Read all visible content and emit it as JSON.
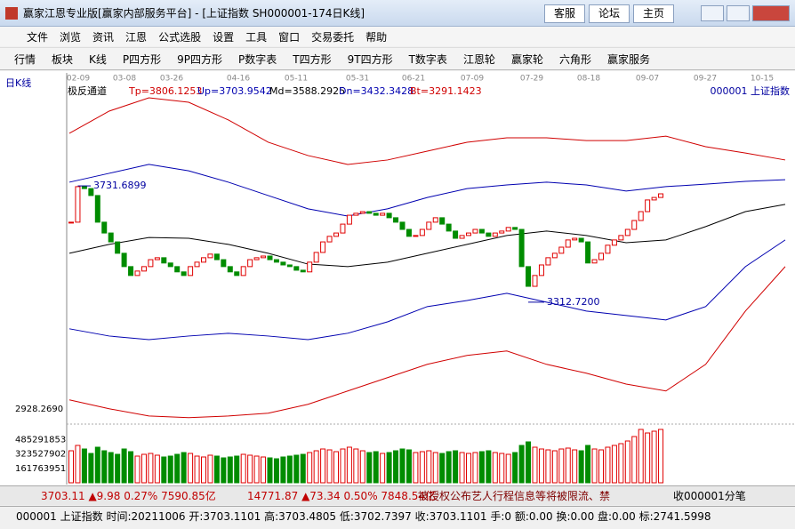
{
  "window": {
    "title": "赢家江恩专业版[赢家内部服务平台] - [上证指数  SH000001-174日K线]",
    "buttons": [
      "客服",
      "论坛",
      "主页"
    ]
  },
  "menu": [
    "文件",
    "浏览",
    "资讯",
    "江恩",
    "公式选股",
    "设置",
    "工具",
    "窗口",
    "交易委托",
    "帮助"
  ],
  "toolbar": [
    "行情",
    "板块",
    "K线",
    "P四方形",
    "9P四方形",
    "P数字表",
    "T四方形",
    "9T四方形",
    "T数字表",
    "江恩轮",
    "赢家轮",
    "六角形",
    "赢家服务"
  ],
  "chart_data": {
    "type": "candlestick",
    "period_label": "日K线",
    "indicator": "极反通道",
    "indicator_params": [
      "Tp=3806.1253",
      "Up=3703.9542",
      "Md=3588.2925",
      "Dn=3432.3428",
      "Bt=3291.1423"
    ],
    "symbol": "000001 上证指数",
    "dates": [
      "02-09",
      "03-08",
      "03-26",
      "04-16",
      "05-11",
      "05-31",
      "06-21",
      "07-09",
      "07-29",
      "08-18",
      "09-07",
      "09-27",
      "10-15"
    ],
    "closes": [
      3601,
      3729,
      3722,
      3697,
      3601,
      3562,
      3530,
      3489,
      3441,
      3409,
      3425,
      3441,
      3466,
      3473,
      3454,
      3441,
      3422,
      3409,
      3441,
      3457,
      3473,
      3486,
      3466,
      3441,
      3422,
      3409,
      3441,
      3466,
      3473,
      3479,
      3466,
      3457,
      3447,
      3441,
      3428,
      3422,
      3457,
      3492,
      3530,
      3550,
      3562,
      3594,
      3626,
      3633,
      3639,
      3633,
      3626,
      3633,
      3617,
      3601,
      3575,
      3550,
      3553,
      3575,
      3601,
      3617,
      3594,
      3569,
      3543,
      3553,
      3562,
      3575,
      3562,
      3550,
      3562,
      3569,
      3582,
      3575,
      3441,
      3370,
      3409,
      3447,
      3473,
      3489,
      3511,
      3537,
      3543,
      3530,
      3454,
      3466,
      3489,
      3518,
      3537,
      3553,
      3575,
      3607,
      3639,
      3681,
      3690,
      3703.11
    ],
    "up_color": "#e00000",
    "down_color": "#008c00",
    "ylim": [
      2893,
      4097
    ],
    "price_label": {
      "value": 2928.269,
      "label": "2928.2690"
    },
    "annotations": [
      {
        "value": 3731.6899,
        "label": "3731.6899"
      },
      {
        "value": 3312.72,
        "label": "3312.7200"
      }
    ],
    "channels": [
      {
        "color": "#d00000",
        "values": [
          3921,
          4001,
          4049,
          4033,
          3969,
          3889,
          3841,
          3809,
          3825,
          3857,
          3889,
          3905,
          3905,
          3895,
          3895,
          3911,
          3873,
          3850,
          3825
        ]
      },
      {
        "color": "#0000b0",
        "values": [
          3745,
          3777,
          3809,
          3786,
          3745,
          3697,
          3649,
          3623,
          3649,
          3690,
          3722,
          3735,
          3745,
          3735,
          3713,
          3729,
          3738,
          3748,
          3754
        ]
      },
      {
        "color": "#000000",
        "values": [
          3489,
          3521,
          3546,
          3543,
          3521,
          3489,
          3450,
          3441,
          3457,
          3489,
          3521,
          3553,
          3569,
          3553,
          3527,
          3537,
          3585,
          3639,
          3665
        ]
      },
      {
        "color": "#0000b0",
        "values": [
          3217,
          3191,
          3178,
          3191,
          3201,
          3191,
          3178,
          3201,
          3242,
          3297,
          3319,
          3345,
          3313,
          3281,
          3265,
          3249,
          3297,
          3441,
          3537
        ]
      },
      {
        "color": "#d00000",
        "values": [
          2961,
          2929,
          2903,
          2897,
          2903,
          2913,
          2945,
          2993,
          3041,
          3089,
          3121,
          3137,
          3089,
          3057,
          3018,
          2993,
          3089,
          3281,
          3441
        ]
      }
    ],
    "volume": {
      "ylim": [
        0,
        650000000
      ],
      "yticks": [
        161763951,
        323527902,
        485291853
      ],
      "values": [
        360000000,
        420000000,
        380000000,
        330000000,
        400000000,
        360000000,
        340000000,
        320000000,
        380000000,
        350000000,
        300000000,
        320000000,
        330000000,
        310000000,
        290000000,
        300000000,
        320000000,
        340000000,
        330000000,
        300000000,
        290000000,
        310000000,
        300000000,
        280000000,
        290000000,
        300000000,
        320000000,
        310000000,
        300000000,
        290000000,
        280000000,
        270000000,
        290000000,
        300000000,
        310000000,
        320000000,
        340000000,
        360000000,
        380000000,
        370000000,
        350000000,
        380000000,
        400000000,
        380000000,
        360000000,
        340000000,
        350000000,
        330000000,
        340000000,
        360000000,
        380000000,
        370000000,
        340000000,
        350000000,
        360000000,
        340000000,
        330000000,
        350000000,
        360000000,
        340000000,
        330000000,
        340000000,
        350000000,
        360000000,
        340000000,
        330000000,
        320000000,
        340000000,
        420000000,
        460000000,
        400000000,
        380000000,
        370000000,
        360000000,
        380000000,
        390000000,
        370000000,
        360000000,
        420000000,
        380000000,
        370000000,
        400000000,
        420000000,
        440000000,
        470000000,
        520000000,
        600000000,
        560000000,
        580000000,
        600000000
      ]
    }
  },
  "status": {
    "sh": "3703.11 ▲9.98 0.27% 7590.85亿",
    "sz": "14771.87 ▲73.34 0.50% 7848.54亿",
    "news": "被授权公布艺人行程信息等将被限流、禁",
    "tick": "收000001分笔"
  },
  "footer": "000001 上证指数 时间:20211006 开:3703.1101 高:3703.4805 低:3702.7397 收:3703.1101 手:0 额:0.00 换:0.00 盘:0.00 标:2741.5998"
}
